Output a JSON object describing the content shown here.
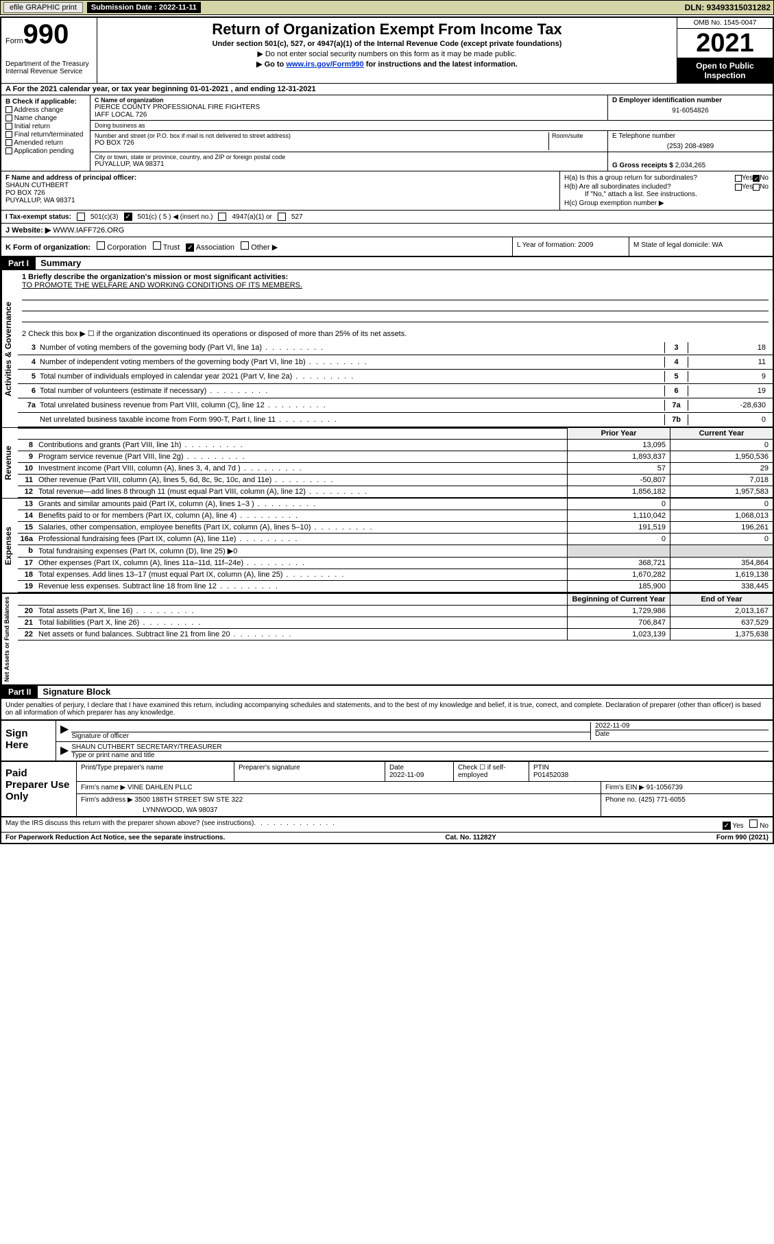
{
  "topbar": {
    "efile": "efile GRAPHIC print",
    "submission_label": "Submission Date : 2022-11-11",
    "dln": "DLN: 93493315031282"
  },
  "header": {
    "form_word": "Form",
    "form_number": "990",
    "dept": "Department of the Treasury",
    "irs": "Internal Revenue Service",
    "title": "Return of Organization Exempt From Income Tax",
    "subtitle": "Under section 501(c), 527, or 4947(a)(1) of the Internal Revenue Code (except private foundations)",
    "note1": "▶ Do not enter social security numbers on this form as it may be made public.",
    "note2_pre": "▶ Go to ",
    "note2_link": "www.irs.gov/Form990",
    "note2_post": " for instructions and the latest information.",
    "omb": "OMB No. 1545-0047",
    "year": "2021",
    "open1": "Open to Public",
    "open2": "Inspection"
  },
  "rowA": "A For the 2021 calendar year, or tax year beginning 01-01-2021   , and ending 12-31-2021",
  "colB": {
    "title": "B Check if applicable:",
    "items": [
      "Address change",
      "Name change",
      "Initial return",
      "Final return/terminated",
      "Amended return",
      "Application pending"
    ]
  },
  "colC": {
    "name_label": "C Name of organization",
    "name1": "PIERCE COUNTY PROFESSIONAL FIRE FIGHTERS",
    "name2": "IAFF LOCAL 726",
    "dba_label": "Doing business as",
    "addr_label": "Number and street (or P.O. box if mail is not delivered to street address)",
    "room_label": "Room/suite",
    "addr": "PO BOX 726",
    "city_label": "City or town, state or province, country, and ZIP or foreign postal code",
    "city": "PUYALLUP, WA  98371"
  },
  "colD": {
    "ein_label": "D Employer identification number",
    "ein": "91-6054826",
    "tel_label": "E Telephone number",
    "tel": "(253) 208-4989",
    "gross_label": "G Gross receipts $",
    "gross": "2,034,265"
  },
  "secF": {
    "label": "F Name and address of principal officer:",
    "name": "SHAUN CUTHBERT",
    "addr1": "PO BOX 726",
    "addr2": "PUYALLUP, WA  98371"
  },
  "secH": {
    "ha": "H(a)  Is this a group return for subordinates?",
    "hb": "H(b)  Are all subordinates included?",
    "hb_note": "If \"No,\" attach a list. See instructions.",
    "hc": "H(c)  Group exemption number ▶",
    "yes": "Yes",
    "no": "No"
  },
  "rowI": {
    "label": "I   Tax-exempt status:",
    "o1": "501(c)(3)",
    "o2": "501(c) ( 5 ) ◀ (insert no.)",
    "o3": "4947(a)(1) or",
    "o4": "527"
  },
  "rowJ": {
    "label": "J   Website: ▶",
    "site": "WWW.IAFF726.ORG"
  },
  "rowK": {
    "label": "K Form of organization:",
    "o1": "Corporation",
    "o2": "Trust",
    "o3": "Association",
    "o4": "Other ▶",
    "mid": "L Year of formation: 2009",
    "right": "M State of legal domicile: WA"
  },
  "part1": {
    "hdr": "Part I",
    "title": "Summary",
    "q1": "1   Briefly describe the organization's mission or most significant activities:",
    "mission": "TO PROMOTE THE WELFARE AND WORKING CONDITIONS OF ITS MEMBERS.",
    "q2": "2   Check this box ▶ ☐  if the organization discontinued its operations or disposed of more than 25% of its net assets.",
    "side_ag": "Activities & Governance",
    "side_rev": "Revenue",
    "side_exp": "Expenses",
    "side_na": "Net Assets or Fund Balances",
    "lines_gov": [
      {
        "n": "3",
        "d": "Number of voting members of the governing body (Part VI, line 1a)",
        "bn": "3",
        "v": "18"
      },
      {
        "n": "4",
        "d": "Number of independent voting members of the governing body (Part VI, line 1b)",
        "bn": "4",
        "v": "11"
      },
      {
        "n": "5",
        "d": "Total number of individuals employed in calendar year 2021 (Part V, line 2a)",
        "bn": "5",
        "v": "9"
      },
      {
        "n": "6",
        "d": "Total number of volunteers (estimate if necessary)",
        "bn": "6",
        "v": "19"
      },
      {
        "n": "7a",
        "d": "Total unrelated business revenue from Part VIII, column (C), line 12",
        "bn": "7a",
        "v": "-28,630"
      },
      {
        "n": "",
        "d": "Net unrelated business taxable income from Form 990-T, Part I, line 11",
        "bn": "7b",
        "v": "0"
      }
    ],
    "col_prior": "Prior Year",
    "col_curr": "Current Year",
    "lines_rev": [
      {
        "n": "8",
        "d": "Contributions and grants (Part VIII, line 1h)",
        "p": "13,095",
        "c": "0"
      },
      {
        "n": "9",
        "d": "Program service revenue (Part VIII, line 2g)",
        "p": "1,893,837",
        "c": "1,950,536"
      },
      {
        "n": "10",
        "d": "Investment income (Part VIII, column (A), lines 3, 4, and 7d )",
        "p": "57",
        "c": "29"
      },
      {
        "n": "11",
        "d": "Other revenue (Part VIII, column (A), lines 5, 6d, 8c, 9c, 10c, and 11e)",
        "p": "-50,807",
        "c": "7,018"
      },
      {
        "n": "12",
        "d": "Total revenue—add lines 8 through 11 (must equal Part VIII, column (A), line 12)",
        "p": "1,856,182",
        "c": "1,957,583"
      }
    ],
    "lines_exp": [
      {
        "n": "13",
        "d": "Grants and similar amounts paid (Part IX, column (A), lines 1–3 )",
        "p": "0",
        "c": "0"
      },
      {
        "n": "14",
        "d": "Benefits paid to or for members (Part IX, column (A), line 4)",
        "p": "1,110,042",
        "c": "1,068,013"
      },
      {
        "n": "15",
        "d": "Salaries, other compensation, employee benefits (Part IX, column (A), lines 5–10)",
        "p": "191,519",
        "c": "196,261"
      },
      {
        "n": "16a",
        "d": "Professional fundraising fees (Part IX, column (A), line 11e)",
        "p": "0",
        "c": "0"
      },
      {
        "n": "b",
        "d": "Total fundraising expenses (Part IX, column (D), line 25) ▶0",
        "p": "",
        "c": "",
        "shade": true
      },
      {
        "n": "17",
        "d": "Other expenses (Part IX, column (A), lines 11a–11d, 11f–24e)",
        "p": "368,721",
        "c": "354,864"
      },
      {
        "n": "18",
        "d": "Total expenses. Add lines 13–17 (must equal Part IX, column (A), line 25)",
        "p": "1,670,282",
        "c": "1,619,138"
      },
      {
        "n": "19",
        "d": "Revenue less expenses. Subtract line 18 from line 12",
        "p": "185,900",
        "c": "338,445"
      }
    ],
    "col_beg": "Beginning of Current Year",
    "col_end": "End of Year",
    "lines_na": [
      {
        "$n": "20",
        "d": "Total assets (Part X, line 16)",
        "p": "1,729,986",
        "c": "2,013,167"
      },
      {
        "$n": "21",
        "d": "Total liabilities (Part X, line 26)",
        "p": "706,847",
        "c": "637,529"
      },
      {
        "$n": "22",
        "d": "Net assets or fund balances. Subtract line 21 from line 20",
        "p": "1,023,139",
        "c": "1,375,638"
      }
    ]
  },
  "part2": {
    "hdr": "Part II",
    "title": "Signature Block",
    "decl": "Under penalties of perjury, I declare that I have examined this return, including accompanying schedules and statements, and to the best of my knowledge and belief, it is true, correct, and complete. Declaration of preparer (other than officer) is based on all information of which preparer has any knowledge.",
    "sign_here": "Sign Here",
    "sig_officer": "Signature of officer",
    "sig_date": "2022-11-09",
    "date_lbl": "Date",
    "officer_name": "SHAUN CUTHBERT SECRETARY/TREASURER",
    "officer_lbl": "Type or print name and title",
    "paid": "Paid Preparer Use Only",
    "pt_name_lbl": "Print/Type preparer's name",
    "pt_sig_lbl": "Preparer's signature",
    "pt_date_lbl": "Date",
    "pt_date": "2022-11-09",
    "pt_check_lbl": "Check ☐ if self-employed",
    "pt_ptin_lbl": "PTIN",
    "pt_ptin": "P01452038",
    "firm_name_lbl": "Firm's name    ▶",
    "firm_name": "VINE DAHLEN PLLC",
    "firm_ein_lbl": "Firm's EIN ▶",
    "firm_ein": "91-1056739",
    "firm_addr_lbl": "Firm's address ▶",
    "firm_addr1": "3500 188TH STREET SW STE 322",
    "firm_addr2": "LYNNWOOD, WA  98037",
    "phone_lbl": "Phone no.",
    "phone": "(425) 771-6055",
    "may_discuss": "May the IRS discuss this return with the preparer shown above? (see instructions)",
    "paperwork": "For Paperwork Reduction Act Notice, see the separate instructions.",
    "cat": "Cat. No. 11282Y",
    "form_foot": "Form 990 (2021)"
  }
}
